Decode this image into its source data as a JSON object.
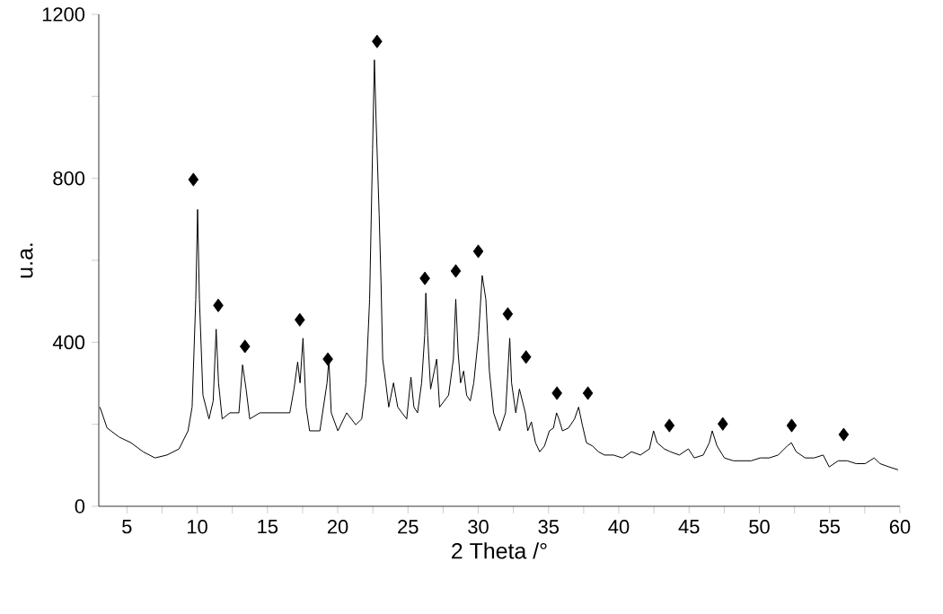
{
  "chart_data": {
    "type": "line",
    "xlabel": "2 Theta /°",
    "ylabel": "u.a.",
    "xlim": [
      3,
      60
    ],
    "ylim": [
      0,
      1200
    ],
    "xticks": [
      5,
      {
        "value": 7.5,
        "label": null
      },
      10,
      {
        "value": 12.5,
        "label": null
      },
      15,
      {
        "value": 17.5,
        "label": null
      },
      20,
      {
        "value": 22.5,
        "label": null
      },
      25,
      {
        "value": 27.5,
        "label": null
      },
      30,
      {
        "value": 32.5,
        "label": null
      },
      35,
      {
        "value": 37.5,
        "label": null
      },
      40,
      {
        "value": 42.5,
        "label": null
      },
      45,
      {
        "value": 47.5,
        "label": null
      },
      50,
      {
        "value": 52.5,
        "label": null
      },
      55,
      {
        "value": 57.5,
        "label": null
      },
      60
    ],
    "yticks": [
      0,
      {
        "value": 200,
        "label": null
      },
      400,
      {
        "value": 600,
        "label": null
      },
      800,
      {
        "value": 1000,
        "label": null
      },
      1200
    ],
    "series": [
      {
        "color": "#000000",
        "marker": "none",
        "line_style": "solid",
        "x": [
          3.08,
          3.59,
          4.44,
          5.29,
          6.15,
          7.0,
          7.85,
          8.71,
          9.35,
          9.64,
          9.9,
          10.03,
          10.16,
          10.41,
          10.84,
          11.14,
          11.35,
          11.52,
          11.78,
          12.33,
          12.97,
          13.23,
          13.48,
          13.74,
          14.46,
          15.1,
          15.74,
          16.59,
          16.89,
          17.15,
          17.32,
          17.53,
          17.75,
          18.0,
          18.73,
          19.24,
          19.37,
          19.54,
          20.01,
          20.64,
          21.28,
          21.71,
          22.01,
          22.27,
          22.48,
          22.61,
          22.73,
          22.95,
          23.08,
          23.2,
          23.42,
          23.63,
          23.97,
          24.27,
          24.57,
          24.91,
          25.21,
          25.42,
          25.68,
          25.97,
          26.19,
          26.27,
          26.4,
          26.61,
          26.87,
          27.04,
          27.25,
          27.89,
          28.23,
          28.4,
          28.57,
          28.74,
          28.96,
          29.17,
          29.43,
          29.68,
          30.02,
          30.28,
          30.54,
          30.79,
          31.09,
          31.52,
          31.94,
          32.24,
          32.37,
          32.67,
          32.93,
          33.35,
          33.52,
          33.78,
          34.07,
          34.37,
          34.71,
          35.06,
          35.35,
          35.57,
          35.74,
          35.99,
          36.42,
          36.85,
          37.14,
          37.4,
          37.7,
          38.13,
          38.55,
          38.98,
          39.62,
          40.26,
          40.9,
          41.54,
          42.18,
          42.47,
          42.73,
          43.24,
          43.67,
          44.31,
          44.95,
          45.37,
          46.01,
          46.44,
          46.65,
          46.99,
          47.51,
          48.15,
          48.78,
          49.42,
          50.06,
          50.7,
          51.34,
          51.98,
          52.28,
          52.62,
          53.26,
          53.9,
          54.54,
          54.97,
          55.61,
          56.25,
          56.89,
          57.53,
          58.17,
          58.59,
          59.23,
          59.87
        ],
        "values": [
          242,
          191,
          169,
          155,
          133,
          118,
          125,
          140,
          184,
          242,
          505,
          724,
          505,
          271,
          213,
          257,
          432,
          301,
          213,
          228,
          228,
          345,
          286,
          213,
          228,
          228,
          228,
          228,
          286,
          352,
          301,
          410,
          242,
          184,
          184,
          301,
          359,
          228,
          184,
          228,
          199,
          213,
          301,
          505,
          870,
          1089,
          943,
          710,
          549,
          359,
          301,
          242,
          301,
          242,
          228,
          213,
          315,
          242,
          228,
          301,
          417,
          520,
          417,
          286,
          330,
          359,
          242,
          271,
          359,
          505,
          374,
          301,
          330,
          271,
          257,
          301,
          417,
          563,
          505,
          330,
          228,
          184,
          228,
          410,
          301,
          228,
          286,
          228,
          184,
          206,
          155,
          133,
          147,
          184,
          191,
          228,
          213,
          184,
          191,
          213,
          242,
          199,
          155,
          147,
          133,
          125,
          125,
          118,
          133,
          125,
          140,
          184,
          155,
          140,
          133,
          125,
          140,
          118,
          125,
          155,
          184,
          147,
          118,
          111,
          111,
          111,
          118,
          118,
          125,
          147,
          155,
          133,
          118,
          118,
          125,
          96,
          111,
          111,
          104,
          104,
          118,
          104,
          96,
          89
        ]
      },
      {
        "type": "scatter",
        "color": "#000000",
        "marker": "diamond",
        "x": [
          9.73,
          11.5,
          13.4,
          17.3,
          19.3,
          22.8,
          26.2,
          28.4,
          30.0,
          32.1,
          33.4,
          35.6,
          37.8,
          43.6,
          47.4,
          52.3,
          56.0
        ],
        "values": [
          797,
          490,
          390,
          455,
          359,
          1134,
          556,
          574,
          622,
          469,
          364,
          276,
          276,
          197,
          201,
          197,
          175
        ]
      }
    ]
  }
}
